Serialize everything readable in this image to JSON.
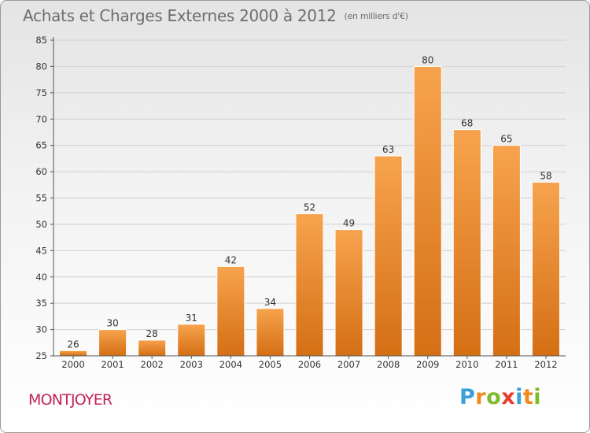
{
  "title": "Achats et Charges Externes 2000 à 2012",
  "subtitle": "(en milliers d'€)",
  "commune": "MONTJOYER",
  "logo": {
    "letters": [
      "P",
      "r",
      "o",
      "x",
      "i",
      "t",
      "i"
    ],
    "colors": [
      "#3aa0d8",
      "#f08a1c",
      "#7cbc2c",
      "#e83c2c",
      "#3aa0d8",
      "#f08a1c",
      "#7cbc2c"
    ]
  },
  "colors": {
    "bar_top": "#f7a34e",
    "bar_bottom": "#d46f14",
    "grid": "#d0d0d0",
    "axis": "#555555",
    "text": "#333333"
  },
  "chart_data": {
    "type": "bar",
    "categories": [
      "2000",
      "2001",
      "2002",
      "2003",
      "2004",
      "2005",
      "2006",
      "2007",
      "2008",
      "2009",
      "2010",
      "2011",
      "2012"
    ],
    "values": [
      26,
      30,
      28,
      31,
      42,
      34,
      52,
      49,
      63,
      80,
      68,
      65,
      58
    ],
    "ylim": [
      25,
      85
    ],
    "yticks": [
      25,
      30,
      35,
      40,
      45,
      50,
      55,
      60,
      65,
      70,
      75,
      80,
      85
    ],
    "grid": true,
    "data_labels": true
  }
}
